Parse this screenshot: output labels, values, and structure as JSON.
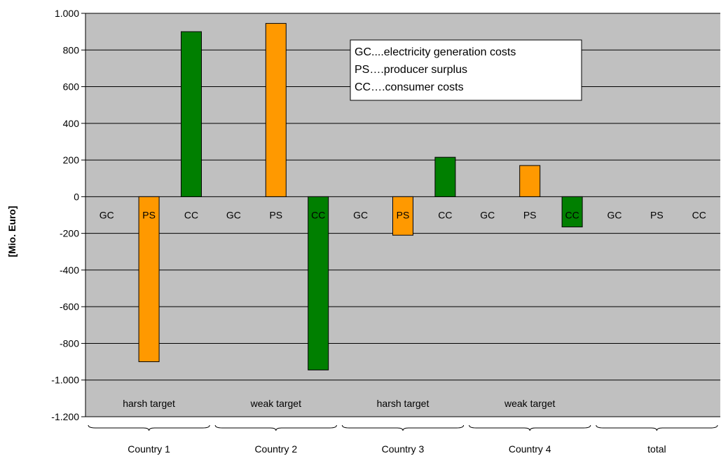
{
  "chart_data": {
    "type": "bar",
    "ylabel": "[Mio. Euro]",
    "ylim": [
      -1200,
      1000
    ],
    "yticks": [
      1000,
      800,
      600,
      400,
      200,
      0,
      -200,
      -400,
      -600,
      -800,
      -1000,
      -1200
    ],
    "ytick_labels": [
      "1.000",
      "800",
      "600",
      "400",
      "200",
      "0",
      "-200",
      "-400",
      "-600",
      "-800",
      "-1.000",
      "-1.200"
    ],
    "grid": true,
    "categories": [
      "GC",
      "PS",
      "CC",
      "GC",
      "PS",
      "CC",
      "GC",
      "PS",
      "CC",
      "GC",
      "PS",
      "CC",
      "GC",
      "PS",
      "CC"
    ],
    "values": [
      0,
      -900,
      900,
      0,
      945,
      -945,
      0,
      -210,
      215,
      0,
      170,
      -165,
      0,
      0,
      0
    ],
    "colors": {
      "GC": "#b0b0b0",
      "PS": "#ff9900",
      "CC": "#007f00"
    },
    "plot_background": "#c0c0c0",
    "scenario_labels": [
      {
        "text": "harsh target",
        "start": 0,
        "end": 2
      },
      {
        "text": "weak target",
        "start": 3,
        "end": 5
      },
      {
        "text": "harsh target",
        "start": 6,
        "end": 8
      },
      {
        "text": "weak target",
        "start": 9,
        "end": 11
      }
    ],
    "group_labels": [
      {
        "text": "Country 1",
        "start": 0,
        "end": 2
      },
      {
        "text": "Country 2",
        "start": 3,
        "end": 5
      },
      {
        "text": "Country 3",
        "start": 6,
        "end": 8
      },
      {
        "text": "Country 4",
        "start": 9,
        "end": 11
      },
      {
        "text": "total",
        "start": 12,
        "end": 14
      }
    ],
    "legend": {
      "placement": "top-center",
      "entries": [
        "GC....electricity generation costs",
        "PS….producer surplus",
        "CC….consumer costs"
      ]
    }
  }
}
